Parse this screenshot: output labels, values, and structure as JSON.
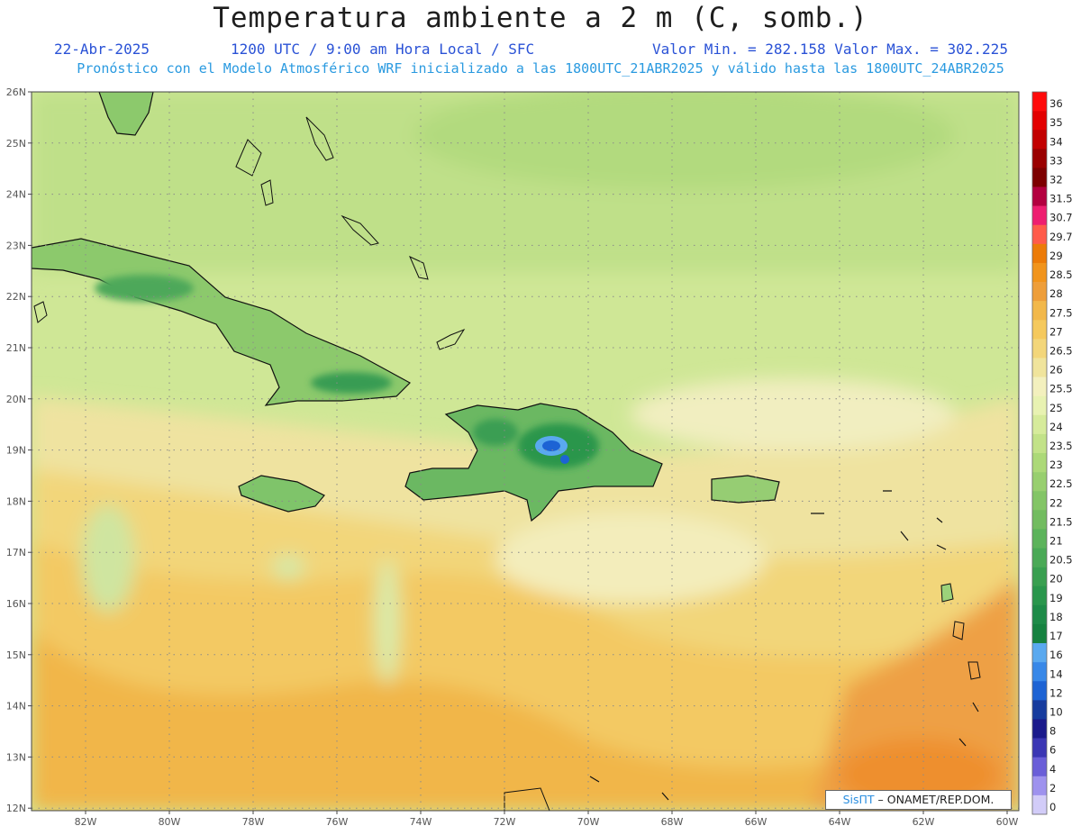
{
  "header": {
    "title": "Temperatura ambiente a 2 m (C, somb.)",
    "date": "22-Abr-2025",
    "time_info": "1200 UTC / 9:00 am Hora Local / SFC",
    "min_max": "Valor Min. = 282.158  Valor Max. = 302.225",
    "model_info": "Pronóstico con el Modelo Atmosférico WRF inicializado a las 1800UTC_21ABR2025 y válido hasta las  1800UTC_24ABR2025"
  },
  "map": {
    "lon_labels": [
      "82W",
      "80W",
      "78W",
      "76W",
      "74W",
      "72W",
      "70W",
      "68W",
      "66W",
      "64W",
      "62W",
      "60W"
    ],
    "lat_labels": [
      "26N",
      "25N",
      "24N",
      "23N",
      "22N",
      "21N",
      "20N",
      "19N",
      "18N",
      "17N",
      "16N",
      "15N",
      "14N",
      "13N",
      "12N"
    ],
    "background_color": "#d9eb9c"
  },
  "colorbar": {
    "labels": [
      "36",
      "35",
      "34",
      "33",
      "32",
      "31.5",
      "30.7",
      "29.7",
      "29",
      "28.5",
      "28",
      "27.5",
      "27",
      "26.5",
      "26",
      "25.5",
      "25",
      "24",
      "23.5",
      "23",
      "22.5",
      "22",
      "21.5",
      "21",
      "20.5",
      "20",
      "19",
      "18",
      "17",
      "16",
      "14",
      "12",
      "10",
      "8",
      "6",
      "4",
      "2",
      "0"
    ],
    "colors": [
      "#ff0a0a",
      "#e30000",
      "#c20000",
      "#9a0000",
      "#7d0000",
      "#b3003f",
      "#ee1e70",
      "#ff5b4a",
      "#ec7b08",
      "#f1941c",
      "#ee9e3a",
      "#f2b84a",
      "#f5c95d",
      "#f3d67a",
      "#f0e49c",
      "#f3f0be",
      "#e8f2b2",
      "#d6eb9b",
      "#c2e288",
      "#acd978",
      "#98cf6f",
      "#83c566",
      "#72bc60",
      "#5cb35b",
      "#4aa956",
      "#399f50",
      "#2a964c",
      "#1e8b48",
      "#168240",
      "#5aa9ef",
      "#3888e8",
      "#1d63d4",
      "#173c9e",
      "#1b1a8c",
      "#3b36b4",
      "#6a5ed8",
      "#9e92ee",
      "#d2ccf8"
    ]
  },
  "credit": {
    "brand": "SisПΤ",
    "text": "– ONAMET/REP.DOM."
  }
}
